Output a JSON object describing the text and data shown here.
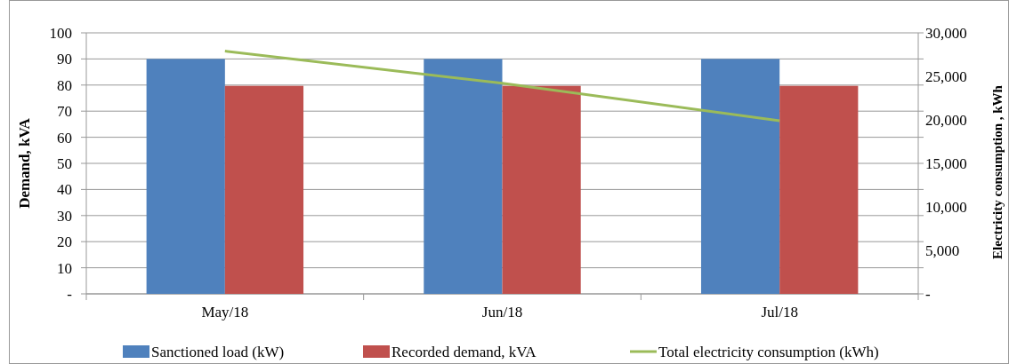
{
  "chart_data": {
    "type": "bar",
    "categories": [
      "May/18",
      "Jun/18",
      "Jul/18"
    ],
    "series": [
      {
        "name": "Sanctioned load (kW)",
        "color": "#4f81bd",
        "values": [
          90,
          90,
          90
        ]
      },
      {
        "name": "Recorded demand, kVA",
        "color": "#c0504d",
        "values": [
          79.7,
          79.7,
          79.7
        ]
      },
      {
        "name": "Total electricity consumption (kWh)",
        "color": "#9bbb59",
        "type": "line",
        "axis": "y2",
        "values": [
          27900,
          24200,
          19900
        ]
      }
    ],
    "ylabel": "Demand, kVA",
    "y2label": "Electricity  consumption , kWh",
    "ylim": [
      0,
      100
    ],
    "yticks": [
      {
        "value": 0,
        "label": "-"
      },
      10,
      20,
      30,
      40,
      50,
      60,
      70,
      80,
      90,
      100
    ],
    "y2lim": [
      0,
      30000
    ],
    "y2ticks": [
      {
        "value": 0,
        "label": "-"
      },
      {
        "value": 5000,
        "label": "5,000"
      },
      {
        "value": 10000,
        "label": "10,000"
      },
      {
        "value": 15000,
        "label": "15,000"
      },
      {
        "value": 20000,
        "label": "20,000"
      },
      {
        "value": 25000,
        "label": "25,000"
      },
      {
        "value": 30000,
        "label": "30,000"
      }
    ],
    "grid": "y",
    "legend": "bottom",
    "marker": "none"
  }
}
